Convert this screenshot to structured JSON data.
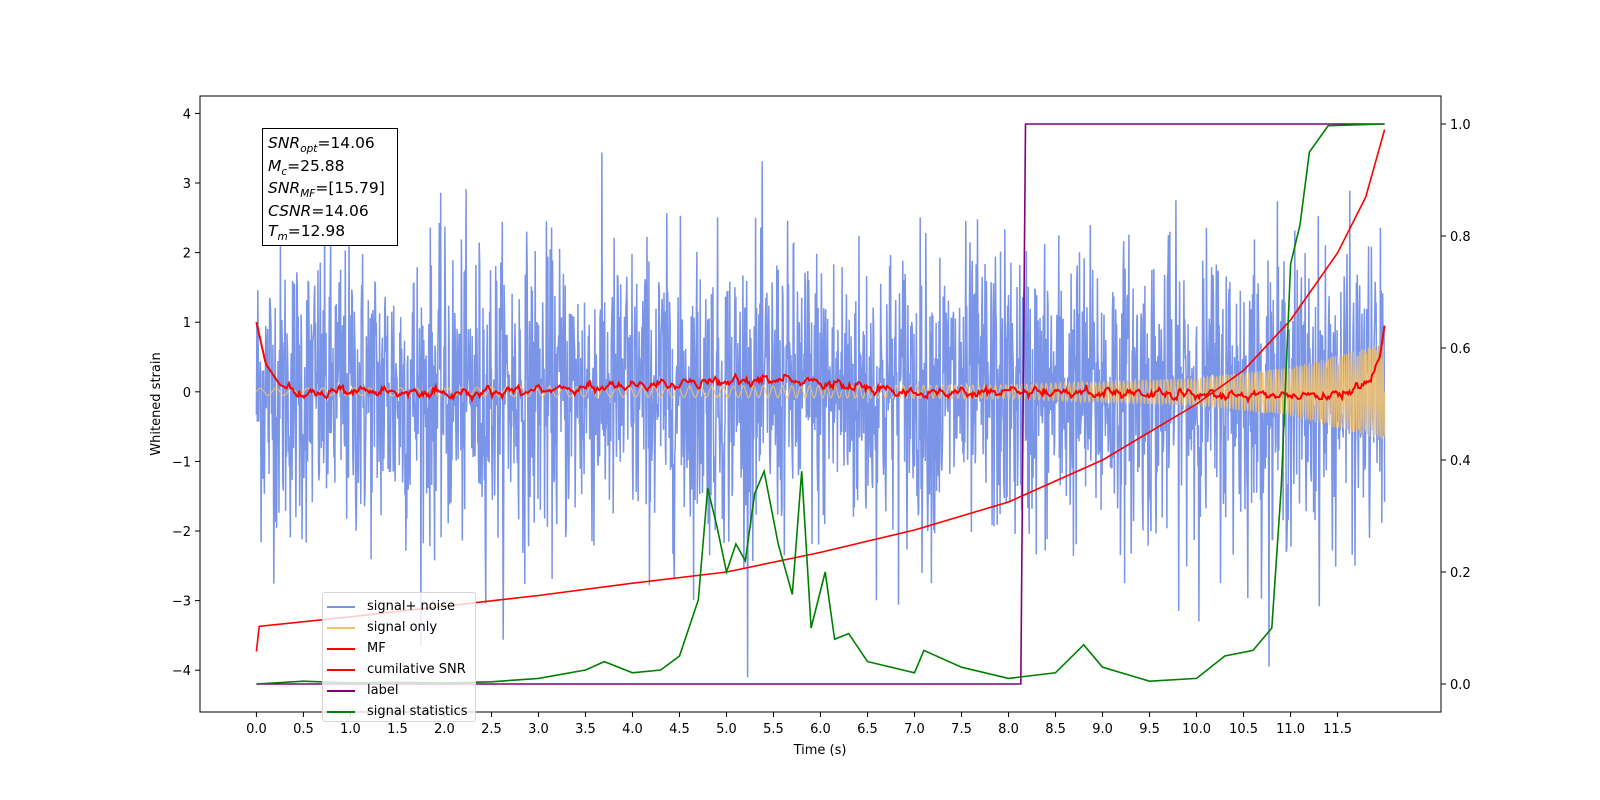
{
  "chart_data": {
    "type": "line",
    "xlabel": "Time (s)",
    "ylabel": "Whitened strain",
    "xlim": [
      -0.6,
      12.6
    ],
    "ylim": [
      -4.6,
      4.25
    ],
    "y2lim": [
      -0.05,
      1.05
    ],
    "x_ticks": [
      "0.0",
      "0.5",
      "1.0",
      "1.5",
      "2.0",
      "2.5",
      "3.0",
      "3.5",
      "4.0",
      "4.5",
      "5.0",
      "5.5",
      "6.0",
      "6.5",
      "7.0",
      "7.5",
      "8.0",
      "8.5",
      "9.0",
      "9.5",
      "10.0",
      "10.5",
      "11.0",
      "11.5"
    ],
    "y_ticks": [
      "4",
      "3",
      "2",
      "1",
      "0",
      "−1",
      "−2",
      "−3",
      "−4"
    ],
    "y2_ticks": [
      "1.0",
      "0.8",
      "0.6",
      "0.4",
      "0.2",
      "0.0"
    ],
    "annotation": [
      {
        "sym": "SNR",
        "sub": "opt",
        "value": "=14.06"
      },
      {
        "sym": "M",
        "sub": "c",
        "value": "=25.88"
      },
      {
        "sym": "SNR",
        "sub": "MF",
        "value": "=[15.79]"
      },
      {
        "sym": "CSNR",
        "sub": "",
        "value": "=14.06"
      },
      {
        "sym": "T",
        "sub": "m",
        "value": "=12.98"
      }
    ],
    "series": [
      {
        "name": "signal+ noise",
        "color": "#7a94e8",
        "axis": "left",
        "kind": "noise",
        "x_range": [
          0.0,
          12.0
        ],
        "amplitude_range": [
          -4.1,
          3.85
        ]
      },
      {
        "name": "signal only",
        "color": "#f5c26b",
        "axis": "left",
        "kind": "chirp",
        "x_range": [
          0.0,
          12.0
        ],
        "envelope": [
          [
            0.0,
            0.05
          ],
          [
            8.0,
            0.1
          ],
          [
            10.0,
            0.2
          ],
          [
            11.0,
            0.35
          ],
          [
            12.0,
            0.7
          ]
        ]
      },
      {
        "name": "MF",
        "color": "#ff0000",
        "axis": "left",
        "kind": "filter",
        "points": [
          [
            0.0,
            1.0
          ],
          [
            0.1,
            0.4
          ],
          [
            0.25,
            0.1
          ],
          [
            0.5,
            -0.05
          ],
          [
            1.0,
            0.02
          ],
          [
            2.0,
            -0.03
          ],
          [
            3.0,
            0.02
          ],
          [
            4.5,
            0.12
          ],
          [
            5.7,
            0.18
          ],
          [
            7.0,
            -0.02
          ],
          [
            8.0,
            0.0
          ],
          [
            9.0,
            -0.02
          ],
          [
            10.5,
            -0.05
          ],
          [
            11.5,
            -0.05
          ],
          [
            11.8,
            0.1
          ],
          [
            11.95,
            0.5
          ],
          [
            12.0,
            0.95
          ]
        ]
      },
      {
        "name": "cumilative SNR",
        "color": "#ff0000",
        "axis": "right",
        "points": [
          [
            0.0,
            0.058
          ],
          [
            0.03,
            0.103
          ],
          [
            1.0,
            0.12
          ],
          [
            2.0,
            0.139
          ],
          [
            3.0,
            0.158
          ],
          [
            4.0,
            0.18
          ],
          [
            5.0,
            0.2
          ],
          [
            6.0,
            0.235
          ],
          [
            7.0,
            0.275
          ],
          [
            8.0,
            0.325
          ],
          [
            9.0,
            0.4
          ],
          [
            10.0,
            0.5
          ],
          [
            10.5,
            0.56
          ],
          [
            11.0,
            0.65
          ],
          [
            11.5,
            0.77
          ],
          [
            11.8,
            0.87
          ],
          [
            12.0,
            0.99
          ]
        ]
      },
      {
        "name": "label",
        "color": "#800080",
        "axis": "right",
        "points": [
          [
            0.0,
            0.0
          ],
          [
            8.13,
            0.0
          ],
          [
            8.18,
            1.0
          ],
          [
            12.0,
            1.0
          ]
        ]
      },
      {
        "name": "signal statistics",
        "color": "#008000",
        "axis": "right",
        "points": [
          [
            0.0,
            0.0
          ],
          [
            0.5,
            0.005
          ],
          [
            1.0,
            0.002
          ],
          [
            1.5,
            0.003
          ],
          [
            2.0,
            0.002
          ],
          [
            2.5,
            0.004
          ],
          [
            3.0,
            0.01
          ],
          [
            3.5,
            0.025
          ],
          [
            3.7,
            0.04
          ],
          [
            4.0,
            0.02
          ],
          [
            4.3,
            0.025
          ],
          [
            4.5,
            0.05
          ],
          [
            4.7,
            0.15
          ],
          [
            4.8,
            0.35
          ],
          [
            4.9,
            0.28
          ],
          [
            5.0,
            0.2
          ],
          [
            5.1,
            0.25
          ],
          [
            5.2,
            0.22
          ],
          [
            5.3,
            0.34
          ],
          [
            5.4,
            0.38
          ],
          [
            5.55,
            0.25
          ],
          [
            5.7,
            0.16
          ],
          [
            5.8,
            0.38
          ],
          [
            5.9,
            0.1
          ],
          [
            6.05,
            0.2
          ],
          [
            6.15,
            0.08
          ],
          [
            6.3,
            0.09
          ],
          [
            6.5,
            0.04
          ],
          [
            7.0,
            0.02
          ],
          [
            7.1,
            0.06
          ],
          [
            7.5,
            0.03
          ],
          [
            8.0,
            0.01
          ],
          [
            8.5,
            0.02
          ],
          [
            8.8,
            0.07
          ],
          [
            9.0,
            0.03
          ],
          [
            9.5,
            0.005
          ],
          [
            10.0,
            0.01
          ],
          [
            10.3,
            0.05
          ],
          [
            10.6,
            0.06
          ],
          [
            10.8,
            0.1
          ],
          [
            10.9,
            0.35
          ],
          [
            11.0,
            0.75
          ],
          [
            11.1,
            0.82
          ],
          [
            11.2,
            0.95
          ],
          [
            11.4,
            0.997
          ],
          [
            12.0,
            1.0
          ]
        ]
      }
    ]
  }
}
